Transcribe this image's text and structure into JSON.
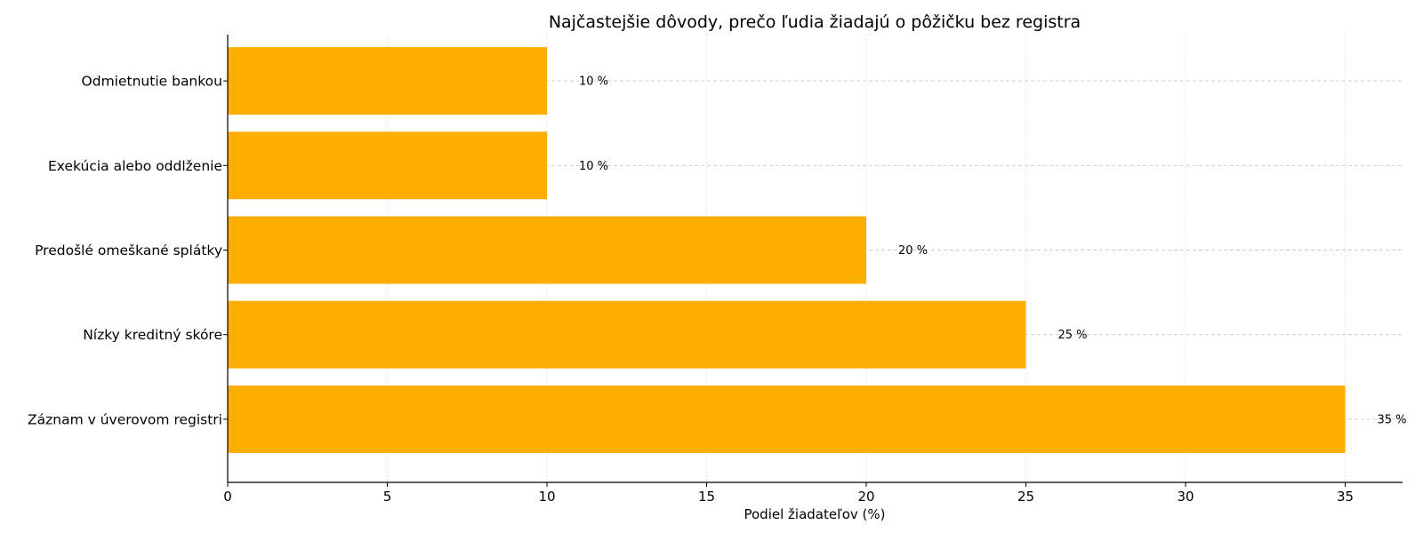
{
  "chart_data": {
    "type": "bar",
    "orientation": "horizontal",
    "title": "Najčastejšie dôvody, prečo ľudia žiadajú o pôžičku bez registra",
    "xlabel": "Podiel žiadateľov (%)",
    "ylabel": "",
    "categories": [
      "Odmietnutie bankou",
      "Exekúcia alebo oddlženie",
      "Predošlé omeškané splátky",
      "Nízky kreditný skóre",
      "Záznam v úverovom registri"
    ],
    "values": [
      10,
      10,
      20,
      25,
      35
    ],
    "data_labels": [
      "10 %",
      "10 %",
      "20 %",
      "25 %",
      "35 %"
    ],
    "xlim": [
      0,
      36.7
    ],
    "xticks": [
      0,
      5,
      10,
      15,
      20,
      25,
      30,
      35
    ],
    "xtick_labels": [
      "0",
      "5",
      "10",
      "15",
      "20",
      "25",
      "30",
      "35"
    ],
    "grid": true,
    "legend": "none",
    "bar_color": "#FFAE00"
  }
}
